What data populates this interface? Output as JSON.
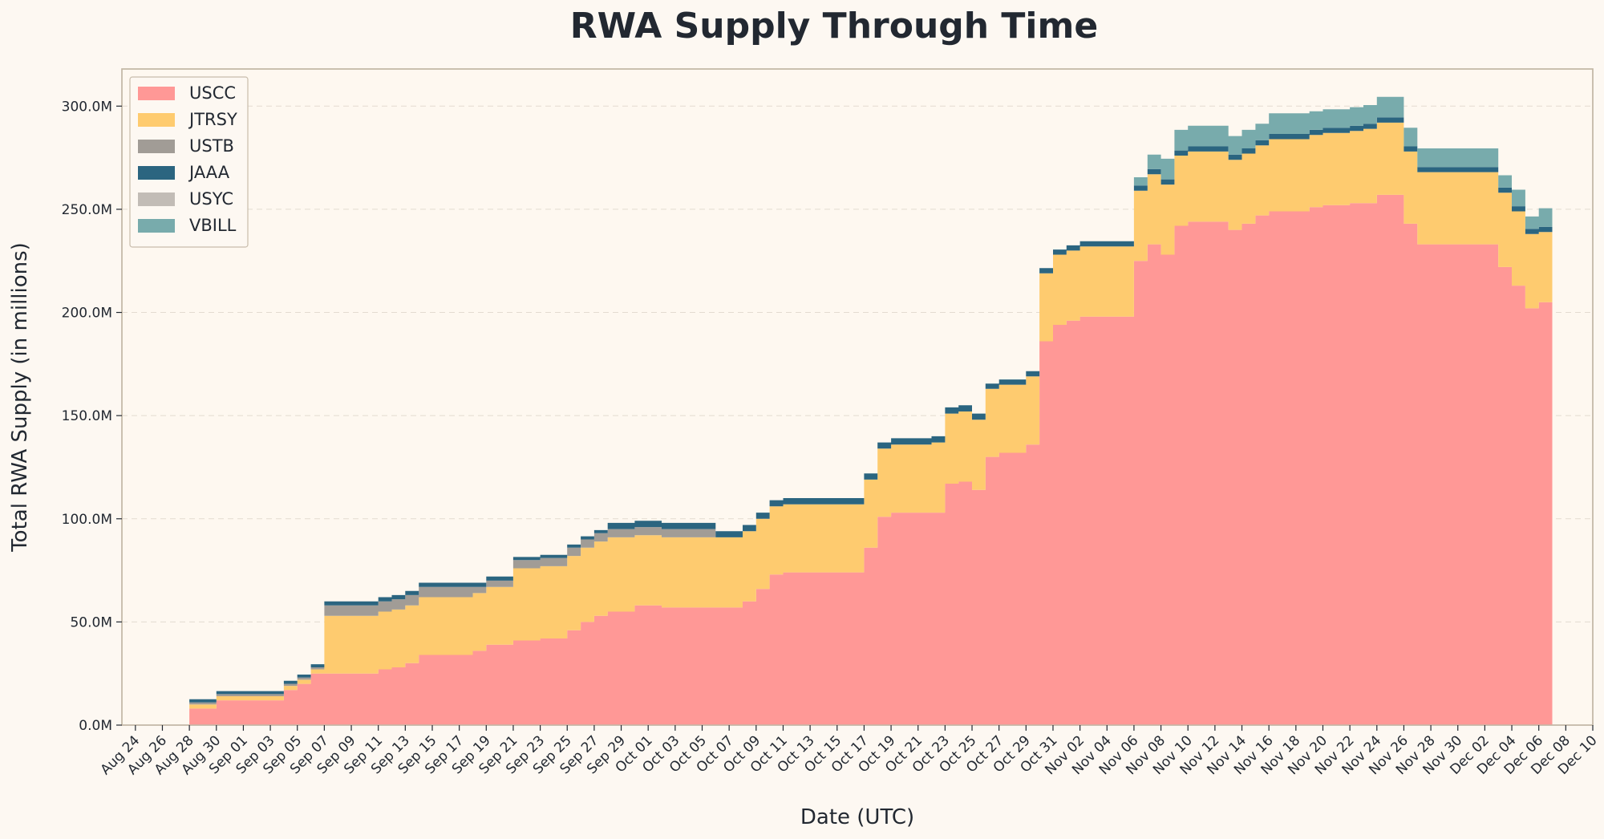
{
  "chart_data": {
    "type": "area",
    "stacked": true,
    "title": "RWA Supply Through Time",
    "xlabel": "Date (UTC)",
    "ylabel": "Total RWA Supply (in millions)",
    "ylim": [
      0,
      318
    ],
    "xlim": [
      "2024-08-23",
      "2024-12-10"
    ],
    "grid": "horizontal dashed",
    "legend_position": "top-left",
    "y_ticks": [
      {
        "value": 0,
        "label": "0.0M"
      },
      {
        "value": 50,
        "label": "50.0M"
      },
      {
        "value": 100,
        "label": "100.0M"
      },
      {
        "value": 150,
        "label": "150.0M"
      },
      {
        "value": 200,
        "label": "200.0M"
      },
      {
        "value": 250,
        "label": "250.0M"
      },
      {
        "value": 300,
        "label": "300.0M"
      }
    ],
    "x_ticks": [
      {
        "date": "2024-08-24",
        "label": "Aug 24"
      },
      {
        "date": "2024-08-26",
        "label": "Aug 26"
      },
      {
        "date": "2024-08-28",
        "label": "Aug 28"
      },
      {
        "date": "2024-08-30",
        "label": "Aug 30"
      },
      {
        "date": "2024-09-01",
        "label": "Sep 01"
      },
      {
        "date": "2024-09-03",
        "label": "Sep 03"
      },
      {
        "date": "2024-09-05",
        "label": "Sep 05"
      },
      {
        "date": "2024-09-07",
        "label": "Sep 07"
      },
      {
        "date": "2024-09-09",
        "label": "Sep 09"
      },
      {
        "date": "2024-09-11",
        "label": "Sep 11"
      },
      {
        "date": "2024-09-13",
        "label": "Sep 13"
      },
      {
        "date": "2024-09-15",
        "label": "Sep 15"
      },
      {
        "date": "2024-09-17",
        "label": "Sep 17"
      },
      {
        "date": "2024-09-19",
        "label": "Sep 19"
      },
      {
        "date": "2024-09-21",
        "label": "Sep 21"
      },
      {
        "date": "2024-09-23",
        "label": "Sep 23"
      },
      {
        "date": "2024-09-25",
        "label": "Sep 25"
      },
      {
        "date": "2024-09-27",
        "label": "Sep 27"
      },
      {
        "date": "2024-09-29",
        "label": "Sep 29"
      },
      {
        "date": "2024-10-01",
        "label": "Oct 01"
      },
      {
        "date": "2024-10-03",
        "label": "Oct 03"
      },
      {
        "date": "2024-10-05",
        "label": "Oct 05"
      },
      {
        "date": "2024-10-07",
        "label": "Oct 07"
      },
      {
        "date": "2024-10-09",
        "label": "Oct 09"
      },
      {
        "date": "2024-10-11",
        "label": "Oct 11"
      },
      {
        "date": "2024-10-13",
        "label": "Oct 13"
      },
      {
        "date": "2024-10-15",
        "label": "Oct 15"
      },
      {
        "date": "2024-10-17",
        "label": "Oct 17"
      },
      {
        "date": "2024-10-19",
        "label": "Oct 19"
      },
      {
        "date": "2024-10-21",
        "label": "Oct 21"
      },
      {
        "date": "2024-10-23",
        "label": "Oct 23"
      },
      {
        "date": "2024-10-25",
        "label": "Oct 25"
      },
      {
        "date": "2024-10-27",
        "label": "Oct 27"
      },
      {
        "date": "2024-10-29",
        "label": "Oct 29"
      },
      {
        "date": "2024-10-31",
        "label": "Oct 31"
      },
      {
        "date": "2024-11-02",
        "label": "Nov 02"
      },
      {
        "date": "2024-11-04",
        "label": "Nov 04"
      },
      {
        "date": "2024-11-06",
        "label": "Nov 06"
      },
      {
        "date": "2024-11-08",
        "label": "Nov 08"
      },
      {
        "date": "2024-11-10",
        "label": "Nov 10"
      },
      {
        "date": "2024-11-12",
        "label": "Nov 12"
      },
      {
        "date": "2024-11-14",
        "label": "Nov 14"
      },
      {
        "date": "2024-11-16",
        "label": "Nov 16"
      },
      {
        "date": "2024-11-18",
        "label": "Nov 18"
      },
      {
        "date": "2024-11-20",
        "label": "Nov 20"
      },
      {
        "date": "2024-11-22",
        "label": "Nov 22"
      },
      {
        "date": "2024-11-24",
        "label": "Nov 24"
      },
      {
        "date": "2024-11-26",
        "label": "Nov 26"
      },
      {
        "date": "2024-11-28",
        "label": "Nov 28"
      },
      {
        "date": "2024-11-30",
        "label": "Nov 30"
      },
      {
        "date": "2024-12-02",
        "label": "Dec 02"
      },
      {
        "date": "2024-12-04",
        "label": "Dec 04"
      },
      {
        "date": "2024-12-06",
        "label": "Dec 06"
      },
      {
        "date": "2024-12-08",
        "label": "Dec 08"
      },
      {
        "date": "2024-12-10",
        "label": "Dec 10"
      }
    ],
    "x": [
      "2024-08-28",
      "2024-08-28",
      "2024-08-30",
      "2024-09-01",
      "2024-09-03",
      "2024-09-04",
      "2024-09-05",
      "2024-09-06",
      "2024-09-06",
      "2024-09-07",
      "2024-09-10",
      "2024-09-11",
      "2024-09-12",
      "2024-09-13",
      "2024-09-14",
      "2024-09-16",
      "2024-09-17",
      "2024-09-18",
      "2024-09-19",
      "2024-09-20",
      "2024-09-21",
      "2024-09-23",
      "2024-09-24",
      "2024-09-25",
      "2024-09-26",
      "2024-09-27",
      "2024-09-28",
      "2024-09-30",
      "2024-10-01",
      "2024-10-02",
      "2024-10-04",
      "2024-10-06",
      "2024-10-07",
      "2024-10-08",
      "2024-10-09",
      "2024-10-10",
      "2024-10-11",
      "2024-10-13",
      "2024-10-15",
      "2024-10-16",
      "2024-10-17",
      "2024-10-18",
      "2024-10-19",
      "2024-10-20",
      "2024-10-21",
      "2024-10-22",
      "2024-10-23",
      "2024-10-24",
      "2024-10-25",
      "2024-10-26",
      "2024-10-27",
      "2024-10-28",
      "2024-10-29",
      "2024-10-30",
      "2024-10-31",
      "2024-11-01",
      "2024-11-02",
      "2024-11-03",
      "2024-11-04",
      "2024-11-05",
      "2024-11-06",
      "2024-11-07",
      "2024-11-08",
      "2024-11-09",
      "2024-11-10",
      "2024-11-11",
      "2024-11-12",
      "2024-11-13",
      "2024-11-14",
      "2024-11-15",
      "2024-11-16",
      "2024-11-17",
      "2024-11-18",
      "2024-11-19",
      "2024-11-20",
      "2024-11-21",
      "2024-11-22",
      "2024-11-23",
      "2024-11-24",
      "2024-11-25",
      "2024-11-26",
      "2024-11-27",
      "2024-11-28",
      "2024-11-29",
      "2024-11-30",
      "2024-12-01",
      "2024-12-02",
      "2024-12-03",
      "2024-12-04",
      "2024-12-05",
      "2024-12-06",
      "2024-12-07"
    ],
    "series": [
      {
        "name": "USCC",
        "color": "#ff9896",
        "values": [
          0,
          8,
          12,
          12,
          12,
          17,
          20,
          23,
          25,
          25,
          25,
          27,
          28,
          30,
          34,
          34,
          34,
          36,
          39,
          39,
          41,
          42,
          42,
          46,
          50,
          53,
          55,
          58,
          58,
          57,
          57,
          57,
          57,
          60,
          66,
          73,
          74,
          74,
          74,
          74,
          86,
          101,
          103,
          103,
          103,
          103,
          117,
          118,
          114,
          130,
          132,
          132,
          136,
          186,
          194,
          196,
          198,
          198,
          198,
          198,
          225,
          233,
          228,
          242,
          244,
          244,
          244,
          240,
          243,
          247,
          249,
          249,
          249,
          251,
          252,
          252,
          253,
          253,
          257,
          257,
          243,
          233,
          233,
          233,
          233,
          233,
          233,
          222,
          213,
          202,
          205,
          0
        ]
      },
      {
        "name": "JTRSY",
        "color": "#fecb6f",
        "values": [
          0,
          2,
          2,
          2,
          2,
          2,
          2,
          2,
          2,
          28,
          28,
          28,
          28,
          28,
          28,
          28,
          28,
          28,
          28,
          28,
          35,
          35,
          35,
          36,
          36,
          36,
          36,
          34,
          34,
          34,
          34,
          34,
          34,
          34,
          34,
          33,
          33,
          33,
          33,
          33,
          33,
          33,
          33,
          33,
          33,
          34,
          34,
          34,
          34,
          33,
          33,
          33,
          33,
          33,
          34,
          34,
          34,
          34,
          34,
          34,
          34,
          34,
          34,
          34,
          34,
          34,
          34,
          34,
          34,
          34,
          35,
          35,
          35,
          35,
          35,
          35,
          35,
          36,
          35,
          35,
          35,
          35,
          35,
          35,
          35,
          35,
          35,
          36,
          36,
          36,
          34,
          0
        ]
      },
      {
        "name": "USTB",
        "color": "#a19c96",
        "values": [
          0,
          1,
          1,
          1,
          1,
          1,
          1,
          1,
          1,
          5,
          5,
          5,
          5,
          5,
          5,
          5,
          5,
          3,
          3,
          3,
          4,
          4,
          4,
          4,
          4,
          4,
          4,
          4,
          4,
          4,
          4,
          0,
          0,
          0,
          0,
          0,
          0,
          0,
          0,
          0,
          0,
          0,
          0,
          0,
          0,
          0,
          0,
          0,
          0,
          0,
          0,
          0,
          0,
          0,
          0,
          0,
          0,
          0,
          0,
          0,
          0,
          0,
          0,
          0,
          0,
          0,
          0,
          0,
          0,
          0,
          0,
          0,
          0,
          0,
          0,
          0,
          0,
          0,
          0,
          0,
          0,
          0,
          0,
          0,
          0,
          0,
          0,
          0,
          0,
          0,
          0,
          0
        ]
      },
      {
        "name": "JAAA",
        "color": "#2b6580",
        "values": [
          0,
          1.5,
          1.5,
          1.5,
          1.5,
          1.5,
          1.5,
          1.5,
          1.5,
          2,
          2,
          2,
          2,
          2,
          2,
          2,
          2,
          2,
          2,
          2,
          1.5,
          1.5,
          1.5,
          1.5,
          1.5,
          1.5,
          3,
          3,
          3,
          3,
          3,
          3,
          3,
          3,
          3,
          3,
          3,
          3,
          3,
          3,
          3,
          3,
          3,
          3,
          3,
          3,
          3,
          3,
          3,
          2.5,
          2.5,
          2.5,
          2.5,
          2.5,
          2.5,
          2.5,
          2.5,
          2.5,
          2.5,
          2.5,
          2.5,
          2.5,
          2.5,
          2.5,
          2.5,
          2.5,
          2.5,
          2.5,
          2.5,
          2.5,
          2.5,
          2.5,
          2.5,
          2.5,
          2.5,
          2.5,
          2.5,
          2.5,
          2.5,
          2.5,
          2.5,
          2.5,
          2.5,
          2.5,
          2.5,
          2.5,
          2.5,
          2.5,
          2.5,
          2.5,
          2.5,
          0
        ]
      },
      {
        "name": "USYC",
        "color": "#c2bcb6",
        "values": [
          0,
          0,
          0,
          0,
          0,
          0,
          0,
          0,
          0,
          0,
          0,
          0,
          0,
          0,
          0,
          0,
          0,
          0,
          0,
          0,
          0,
          0,
          0,
          0,
          0,
          0,
          0,
          0,
          0,
          0,
          0,
          0,
          0,
          0,
          0,
          0,
          0,
          0,
          0,
          0,
          0,
          0,
          0,
          0,
          0,
          0,
          0,
          0,
          0,
          0,
          0,
          0,
          0,
          0,
          0,
          0,
          0,
          0,
          0,
          0,
          0,
          0,
          0,
          0,
          0,
          0,
          0,
          0,
          0,
          0,
          0,
          0,
          0,
          0,
          0,
          0,
          0,
          0,
          0,
          0,
          0,
          0,
          0,
          0,
          0,
          0,
          0,
          0,
          0,
          0,
          0,
          0
        ]
      },
      {
        "name": "VBILL",
        "color": "#78abac",
        "values": [
          0,
          0,
          0,
          0,
          0,
          0,
          0,
          0,
          0,
          0,
          0,
          0,
          0,
          0,
          0,
          0,
          0,
          0,
          0,
          0,
          0,
          0,
          0,
          0,
          0,
          0,
          0,
          0,
          0,
          0,
          0,
          0,
          0,
          0,
          0,
          0,
          0,
          0,
          0,
          0,
          0,
          0,
          0,
          0,
          0,
          0,
          0,
          0,
          0,
          0,
          0,
          0,
          0,
          0,
          0,
          0,
          0,
          0,
          0,
          0,
          4,
          7,
          10,
          10,
          10,
          10,
          10,
          9,
          9,
          8,
          10,
          10,
          10,
          9,
          9,
          9,
          9,
          9,
          10,
          10,
          9,
          9,
          9,
          9,
          9,
          9,
          9,
          6,
          8,
          6,
          9,
          0
        ]
      }
    ]
  }
}
